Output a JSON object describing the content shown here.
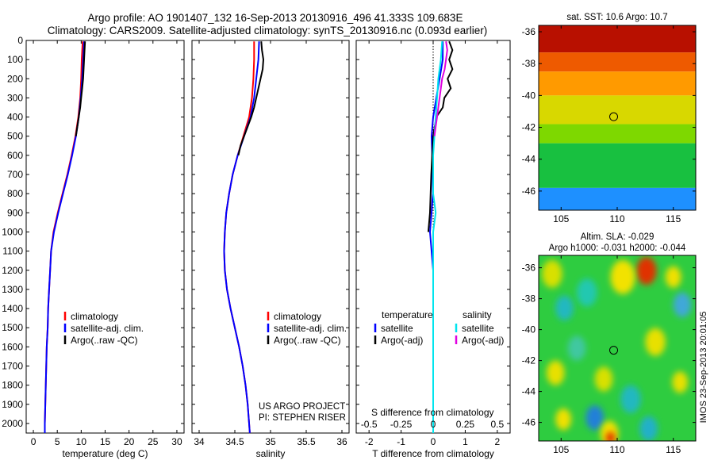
{
  "header": {
    "title_line1": "Argo profile: AO 1901407_132 16-Sep-2013 20130916_496 41.333S 109.683E",
    "title_line2": "Climatology: CARS2009. Satellite-adjusted climatology: synTS_20130916.nc (0.093d earlier)"
  },
  "side_stamp": "IMOS 23-Sep-2013 20:01:05",
  "colors": {
    "climatology": "#ff0000",
    "satellite": "#0000ff",
    "argo": "#000000",
    "sal_satellite": "#00e5ee",
    "sal_argo": "#e000e0",
    "zero_line": "#000000"
  },
  "depth_axis": {
    "min": 0,
    "max": 2050,
    "ticks": [
      "0",
      "100",
      "200",
      "300",
      "400",
      "500",
      "600",
      "700",
      "800",
      "900",
      "1000",
      "1100",
      "1200",
      "1300",
      "1400",
      "1500",
      "1600",
      "1700",
      "1800",
      "1900",
      "2000"
    ]
  },
  "chart_data": [
    {
      "type": "line",
      "xlabel": "temperature (deg C)",
      "ylabel": "",
      "xlim": [
        -1.5,
        31.5
      ],
      "xticks": [
        0,
        5,
        10,
        15,
        20,
        25,
        30
      ],
      "xtick_labels": [
        "0",
        "5",
        "10",
        "15",
        "20",
        "25",
        "30"
      ],
      "legend": [
        "climatology",
        "satellite-adj. clim.",
        "Argo(..raw -QC)"
      ],
      "series": [
        {
          "name": "climatology",
          "color_key": "climatology",
          "depth": [
            5,
            100,
            200,
            300,
            400,
            500,
            600,
            700,
            800,
            900,
            1000,
            1100,
            1200,
            1300,
            1400,
            1500,
            1600,
            1700,
            1800,
            1900,
            2000,
            2050
          ],
          "values": [
            10.3,
            10.1,
            10.0,
            9.8,
            9.4,
            8.8,
            8.0,
            7.1,
            6.1,
            5.1,
            4.2,
            3.7,
            3.5,
            3.3,
            3.1,
            3.0,
            2.8,
            2.7,
            2.6,
            2.5,
            2.4,
            2.4
          ]
        },
        {
          "name": "satellite-adj. clim.",
          "color_key": "satellite",
          "depth": [
            5,
            100,
            200,
            300,
            400,
            500,
            600,
            700,
            800,
            900,
            1000,
            1100,
            1200,
            1300,
            1400,
            1500,
            1600,
            1700,
            1800,
            1900,
            2000,
            2050
          ],
          "values": [
            10.6,
            10.4,
            10.2,
            9.9,
            9.5,
            8.9,
            8.1,
            7.2,
            6.2,
            5.2,
            4.3,
            3.7,
            3.5,
            3.3,
            3.1,
            3.0,
            2.8,
            2.7,
            2.6,
            2.5,
            2.4,
            2.4
          ]
        },
        {
          "name": "Argo(..raw -QC)",
          "color_key": "argo",
          "depth": [
            5,
            50,
            100,
            150,
            200,
            250,
            300,
            350,
            400,
            450,
            500
          ],
          "values": [
            10.8,
            10.7,
            10.6,
            10.5,
            10.4,
            10.2,
            10.0,
            9.8,
            9.5,
            9.2,
            8.9
          ]
        }
      ]
    },
    {
      "type": "line",
      "xlabel": "salinity",
      "ylabel": "",
      "xlim": [
        33.9,
        36.1
      ],
      "xticks": [
        34,
        34.5,
        35,
        35.5,
        36
      ],
      "xtick_labels": [
        "34",
        "34.5",
        "35",
        "35.5",
        "36"
      ],
      "legend": [
        "climatology",
        "satellite-adj. clim.",
        "Argo(..raw -QC)"
      ],
      "credits": [
        "US ARGO PROJECT",
        "PI: STEPHEN RISER"
      ],
      "series": [
        {
          "name": "climatology",
          "color_key": "climatology",
          "depth": [
            5,
            100,
            200,
            300,
            400,
            500,
            600,
            700,
            800,
            900,
            1000,
            1100,
            1200,
            1300,
            1400,
            1500,
            1600,
            1700,
            1800,
            1900,
            2000,
            2050
          ],
          "values": [
            34.77,
            34.77,
            34.76,
            34.74,
            34.7,
            34.62,
            34.54,
            34.47,
            34.42,
            34.38,
            34.36,
            34.35,
            34.36,
            34.39,
            34.44,
            34.5,
            34.56,
            34.61,
            34.65,
            34.68,
            34.7,
            34.71
          ]
        },
        {
          "name": "satellite-adj. clim.",
          "color_key": "satellite",
          "depth": [
            5,
            100,
            200,
            300,
            400,
            500,
            600,
            700,
            800,
            900,
            1000,
            1100,
            1200,
            1300,
            1400,
            1500,
            1600,
            1700,
            1800,
            1900,
            2000,
            2050
          ],
          "values": [
            34.84,
            34.83,
            34.8,
            34.77,
            34.72,
            34.63,
            34.54,
            34.47,
            34.42,
            34.38,
            34.36,
            34.35,
            34.36,
            34.39,
            34.44,
            34.5,
            34.56,
            34.61,
            34.65,
            34.68,
            34.7,
            34.71
          ]
        },
        {
          "name": "Argo(..raw -QC)",
          "color_key": "argo",
          "depth": [
            5,
            50,
            100,
            150,
            200,
            250,
            300,
            350,
            400,
            450,
            500,
            550,
            600
          ],
          "values": [
            34.87,
            34.88,
            34.9,
            34.89,
            34.86,
            34.83,
            34.8,
            34.77,
            34.73,
            34.68,
            34.63,
            34.58,
            34.55
          ]
        }
      ]
    },
    {
      "type": "line",
      "xlabel": "T difference from climatology",
      "ylabel": "",
      "xlim": [
        -2.4,
        2.4
      ],
      "xticks": [
        -2,
        -1,
        0,
        1,
        2
      ],
      "xtick_labels": [
        "-2",
        "-1",
        "0",
        "1",
        "2"
      ],
      "top_label": "S difference from climatology",
      "top_ticks": [
        -0.5,
        -0.25,
        0,
        0.25,
        0.5
      ],
      "top_tick_labels": [
        "-0.5",
        "-0.25",
        "0",
        "0.25",
        "0.5"
      ],
      "legend_titles": [
        "temperature",
        "salinity"
      ],
      "legend": [
        "satellite",
        "Argo(-adj)",
        "satellite",
        "Argo(-adj)"
      ],
      "series": [
        {
          "name": "satellite",
          "quantity": "temperature",
          "color_key": "satellite",
          "depth": [
            5,
            100,
            200,
            300,
            400,
            500,
            600,
            700,
            800,
            900,
            1000,
            1100,
            1200,
            1400,
            1600,
            1800,
            2000,
            2050
          ],
          "values": [
            0.3,
            0.3,
            0.2,
            0.1,
            0.0,
            -0.05,
            -0.03,
            -0.02,
            -0.01,
            -0.05,
            -0.1,
            -0.05,
            0.0,
            0.0,
            0.0,
            0.0,
            0.0,
            0.0
          ]
        },
        {
          "name": "Argo(-adj)",
          "quantity": "temperature",
          "color_key": "argo",
          "depth": [
            5,
            50,
            100,
            150,
            200,
            250,
            300,
            350,
            400,
            450,
            500,
            600,
            700,
            800,
            900,
            1000
          ],
          "values": [
            0.5,
            0.6,
            0.5,
            0.6,
            0.45,
            0.55,
            0.35,
            0.3,
            0.1,
            0.05,
            0.0,
            -0.03,
            -0.06,
            -0.08,
            -0.1,
            -0.15
          ]
        },
        {
          "name": "satellite",
          "quantity": "salinity",
          "color_key": "sal_satellite",
          "depth": [
            5,
            100,
            200,
            300,
            400,
            500,
            600,
            700,
            800,
            900,
            1000,
            1100,
            1200,
            1400,
            1600,
            1800,
            2000,
            2050
          ],
          "values": [
            0.07,
            0.06,
            0.04,
            0.03,
            0.02,
            0.01,
            0.0,
            0.0,
            0.0,
            0.02,
            0.0,
            0.0,
            0.0,
            0.0,
            0.0,
            0.0,
            0.0,
            0.0
          ]
        },
        {
          "name": "Argo(-adj)",
          "quantity": "salinity",
          "color_key": "sal_argo",
          "depth": [
            5,
            50,
            100,
            150,
            200,
            250,
            300,
            350,
            400,
            450,
            500
          ],
          "values": [
            0.1,
            0.11,
            0.1,
            0.09,
            0.07,
            0.06,
            0.05,
            0.04,
            0.03,
            0.02,
            0.01
          ]
        }
      ]
    },
    {
      "type": "heatmap",
      "title": "sat. SST: 10.6 Argo: 10.7",
      "xlim": [
        103,
        117
      ],
      "ylim": [
        -47.2,
        -35.6
      ],
      "xticks": [
        105,
        110,
        115
      ],
      "xtick_labels": [
        "105",
        "110",
        "115"
      ],
      "yticks": [
        -36,
        -38,
        -40,
        -42,
        -44,
        -46
      ],
      "ytick_labels": [
        "-36",
        "-38",
        "-40",
        "-42",
        "-44",
        "-46"
      ],
      "marker": {
        "lon": 109.683,
        "lat": -41.333
      },
      "bands": [
        {
          "lat_top": -35.6,
          "lat_bottom": -37.3,
          "color": "#b81000"
        },
        {
          "lat_top": -37.3,
          "lat_bottom": -38.5,
          "color": "#ee5a00"
        },
        {
          "lat_top": -38.5,
          "lat_bottom": -40.0,
          "color": "#ff9a00"
        },
        {
          "lat_top": -40.0,
          "lat_bottom": -41.8,
          "color": "#d8d800"
        },
        {
          "lat_top": -41.8,
          "lat_bottom": -43.0,
          "color": "#7ed800"
        },
        {
          "lat_top": -43.0,
          "lat_bottom": -45.8,
          "color": "#18c040"
        },
        {
          "lat_top": -45.8,
          "lat_bottom": -47.2,
          "color": "#1e90ff"
        }
      ]
    },
    {
      "type": "heatmap",
      "title": "Altim. SLA: -0.029",
      "subtitle": "Argo h1000: -0.031 h2000: -0.044",
      "xlim": [
        103,
        117
      ],
      "ylim": [
        -47.2,
        -35.2
      ],
      "xticks": [
        105,
        110,
        115
      ],
      "xtick_labels": [
        "105",
        "110",
        "115"
      ],
      "yticks": [
        -36,
        -38,
        -40,
        -42,
        -44,
        -46
      ],
      "ytick_labels": [
        "-36",
        "-38",
        "-40",
        "-42",
        "-44",
        "-46"
      ],
      "marker": {
        "lon": 109.683,
        "lat": -41.333
      },
      "background": "#2ecc40",
      "blobs": [
        {
          "lon": 112.6,
          "lat": -36.2,
          "r": 0.9,
          "color": "#e03000"
        },
        {
          "lon": 110.5,
          "lat": -36.6,
          "r": 1.1,
          "color": "#f2e200"
        },
        {
          "lon": 104.2,
          "lat": -36.4,
          "r": 0.9,
          "color": "#d8e000"
        },
        {
          "lon": 107.3,
          "lat": -37.6,
          "r": 0.9,
          "color": "#20c8b0"
        },
        {
          "lon": 105.3,
          "lat": -38.6,
          "r": 0.8,
          "color": "#20b8c0"
        },
        {
          "lon": 115.8,
          "lat": -38.4,
          "r": 0.8,
          "color": "#40a8d8"
        },
        {
          "lon": 115.0,
          "lat": -36.6,
          "r": 0.7,
          "color": "#f0e000"
        },
        {
          "lon": 113.4,
          "lat": -40.8,
          "r": 0.9,
          "color": "#e8e000"
        },
        {
          "lon": 106.4,
          "lat": -41.2,
          "r": 0.8,
          "color": "#40c8a0"
        },
        {
          "lon": 104.5,
          "lat": -42.8,
          "r": 0.8,
          "color": "#e8e000"
        },
        {
          "lon": 108.8,
          "lat": -43.2,
          "r": 0.8,
          "color": "#d8e000"
        },
        {
          "lon": 115.6,
          "lat": -43.4,
          "r": 0.7,
          "color": "#e8e000"
        },
        {
          "lon": 111.2,
          "lat": -44.5,
          "r": 0.9,
          "color": "#20b8c0"
        },
        {
          "lon": 108.0,
          "lat": -45.7,
          "r": 0.8,
          "color": "#2080d8"
        },
        {
          "lon": 105.2,
          "lat": -45.8,
          "r": 0.7,
          "color": "#f0e000"
        },
        {
          "lon": 112.8,
          "lat": -46.4,
          "r": 0.8,
          "color": "#20b0c8"
        },
        {
          "lon": 109.3,
          "lat": -46.7,
          "r": 0.8,
          "color": "#f2e200"
        },
        {
          "lon": 109.4,
          "lat": -47.0,
          "r": 0.4,
          "color": "#e03000"
        }
      ]
    }
  ]
}
